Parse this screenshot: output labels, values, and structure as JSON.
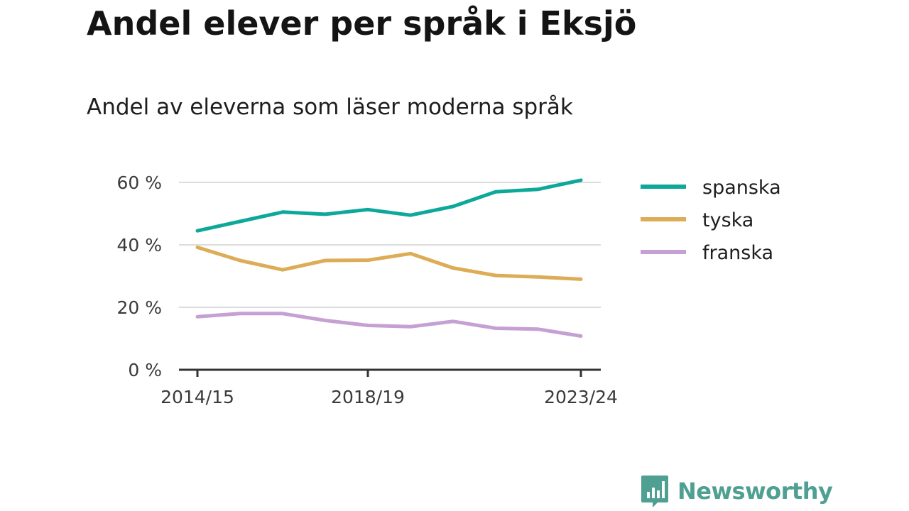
{
  "title": "Andel elever per språk i Eksjö",
  "subtitle": "Andel av eleverna som läser moderna språk",
  "brand": {
    "name": "Newsworthy",
    "color": "#4f9f93",
    "icon": "bar-chart-speech-bubble-icon"
  },
  "chart_data": {
    "type": "line",
    "x": [
      "2014/15",
      "2015/16",
      "2016/17",
      "2017/18",
      "2018/19",
      "2019/20",
      "2020/21",
      "2021/22",
      "2022/23",
      "2023/24"
    ],
    "x_tick_labels": [
      "2014/15",
      "2018/19",
      "2023/24"
    ],
    "y_tick_labels": [
      "0 %",
      "20 %",
      "40 %",
      "60 %"
    ],
    "y_ticks": [
      0,
      20,
      40,
      60
    ],
    "ylim": [
      0,
      63
    ],
    "grid": true,
    "legend_position": "right",
    "series": [
      {
        "name": "spanska",
        "color": "#0ea89a",
        "values": [
          44.5,
          47.5,
          50.5,
          49.8,
          51.3,
          49.5,
          52.3,
          57.0,
          57.8,
          60.7
        ]
      },
      {
        "name": "tyska",
        "color": "#dcac56",
        "values": [
          39.2,
          35.0,
          32.0,
          35.0,
          35.1,
          37.2,
          32.6,
          30.2,
          29.7,
          29.0
        ]
      },
      {
        "name": "franska",
        "color": "#c6a0d3",
        "values": [
          17.0,
          18.0,
          18.0,
          15.8,
          14.2,
          13.8,
          15.5,
          13.3,
          13.0,
          10.8
        ]
      }
    ]
  }
}
